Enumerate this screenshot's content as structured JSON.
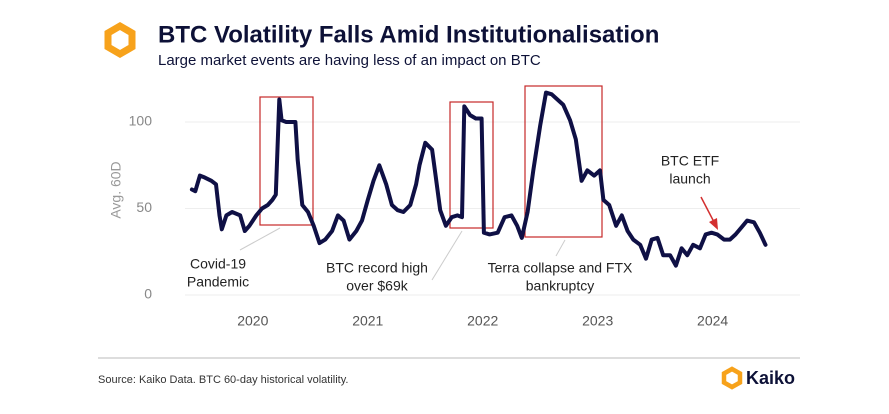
{
  "chart_data": {
    "type": "line",
    "title": "BTC Volatility Falls Amid Institutionalisation",
    "subtitle": "Large market events are having less of an impact on BTC",
    "y_label": "Avg. 60D",
    "source": "Source: Kaiko Data. BTC 60-day historical volatility.",
    "brand": "Kaiko",
    "annotations": [
      {
        "text": [
          "Covid-19",
          "Pandemic"
        ]
      },
      {
        "text": [
          "BTC record high",
          "over $69k"
        ]
      },
      {
        "text": [
          "Terra collapse and FTX",
          "bankruptcy"
        ]
      },
      {
        "text": [
          "BTC ETF",
          "launch"
        ]
      }
    ],
    "xlim": [
      2019.41,
      2024.76
    ],
    "xticks": [
      2020,
      2021,
      2022,
      2023,
      2024
    ],
    "ylim": [
      0,
      120
    ],
    "yticks": [
      0,
      50,
      100
    ],
    "grid": true,
    "x": [
      2019.47,
      2019.5,
      2019.54,
      2019.58,
      2019.64,
      2019.68,
      2019.71,
      2019.73,
      2019.77,
      2019.82,
      2019.89,
      2019.93,
      2019.97,
      2020.03,
      2020.08,
      2020.13,
      2020.17,
      2020.2,
      2020.23,
      2020.25,
      2020.29,
      2020.37,
      2020.39,
      2020.43,
      2020.48,
      2020.53,
      2020.58,
      2020.63,
      2020.69,
      2020.74,
      2020.79,
      2020.84,
      2020.9,
      2020.95,
      2021.0,
      2021.05,
      2021.1,
      2021.16,
      2021.21,
      2021.26,
      2021.31,
      2021.37,
      2021.42,
      2021.45,
      2021.5,
      2021.56,
      2021.59,
      2021.63,
      2021.68,
      2021.73,
      2021.78,
      2021.82,
      2021.84,
      2021.89,
      2021.94,
      2021.99,
      2022.01,
      2022.06,
      2022.13,
      2022.19,
      2022.25,
      2022.3,
      2022.34,
      2022.39,
      2022.44,
      2022.5,
      2022.55,
      2022.6,
      2022.65,
      2022.7,
      2022.76,
      2022.81,
      2022.86,
      2022.91,
      2022.97,
      2023.02,
      2023.05,
      2023.1,
      2023.16,
      2023.21,
      2023.26,
      2023.31,
      2023.37,
      2023.42,
      2023.47,
      2023.52,
      2023.57,
      2023.63,
      2023.68,
      2023.73,
      2023.78,
      2023.83,
      2023.89,
      2023.94,
      2023.99,
      2024.04,
      2024.1,
      2024.15,
      2024.2,
      2024.25,
      2024.3,
      2024.36,
      2024.41,
      2024.46
    ],
    "series": [
      {
        "name": "BTC",
        "color": "#0f1045",
        "values": [
          61,
          60,
          69,
          68,
          66,
          64,
          46,
          38,
          46,
          48,
          46,
          37,
          40,
          46,
          50,
          52,
          55,
          58,
          113,
          101,
          100,
          100,
          78,
          52,
          48,
          40,
          30,
          32,
          37,
          46,
          43,
          32,
          37,
          43,
          55,
          66,
          75,
          64,
          52,
          49,
          48,
          52,
          64,
          75,
          88,
          84,
          69,
          49,
          40,
          45,
          46,
          45,
          109,
          104,
          102,
          102,
          36,
          35,
          36,
          45,
          46,
          40,
          33,
          48,
          72,
          98,
          117,
          116,
          113,
          110,
          101,
          90,
          66,
          72,
          69,
          72,
          55,
          52,
          40,
          46,
          37,
          32,
          29,
          21,
          32,
          33,
          23,
          23,
          17,
          27,
          23,
          29,
          27,
          35,
          36,
          35,
          32,
          32,
          35,
          39,
          43,
          42,
          36,
          29
        ]
      }
    ]
  }
}
